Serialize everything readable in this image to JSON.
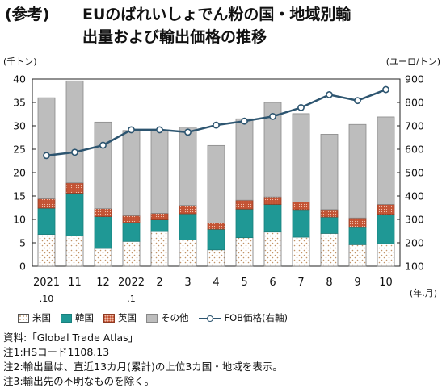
{
  "title": {
    "prefix": "(参考)",
    "line1": "EUのばれいしょでん粉の国・地域別輸",
    "line2": "出量および輸出価格の推移"
  },
  "chart_data": {
    "type": "bar",
    "stacked": true,
    "categories": [
      "2021\n.10",
      "11",
      "12",
      "2022\n.1",
      "2",
      "3",
      "4",
      "5",
      "6",
      "7",
      "8",
      "9",
      "10"
    ],
    "x_unit_label": "(年.月)",
    "y_left_label": "(千トン)",
    "y_right_label": "(ユーロ/トン)",
    "ylim_left": [
      0,
      40
    ],
    "yticks_left": [
      0,
      5,
      10,
      15,
      20,
      25,
      30,
      35,
      40
    ],
    "ylim_right": [
      100,
      900
    ],
    "yticks_right": [
      100,
      200,
      300,
      400,
      500,
      600,
      700,
      800,
      900
    ],
    "series": [
      {
        "name": "米国",
        "values": [
          6.8,
          6.5,
          3.8,
          5.3,
          7.4,
          5.6,
          3.5,
          6.1,
          7.3,
          6.2,
          7.0,
          4.6,
          4.8
        ]
      },
      {
        "name": "韓国",
        "values": [
          5.6,
          9.1,
          6.8,
          4.0,
          2.5,
          5.6,
          4.4,
          6.1,
          5.9,
          5.9,
          3.5,
          3.7,
          6.3
        ]
      },
      {
        "name": "英国",
        "values": [
          2.0,
          2.2,
          1.7,
          1.5,
          1.4,
          1.8,
          1.3,
          1.9,
          1.6,
          1.6,
          1.6,
          2.0,
          2.1
        ]
      },
      {
        "name": "その他",
        "values": [
          21.6,
          21.8,
          18.5,
          18.2,
          17.8,
          16.7,
          16.6,
          17.4,
          20.2,
          18.9,
          16.1,
          20.0,
          18.7
        ]
      }
    ],
    "line_series": {
      "name": "FOB価格(右軸)",
      "values": [
        573,
        587,
        617,
        683,
        683,
        673,
        703,
        720,
        740,
        778,
        833,
        808,
        855
      ]
    },
    "legend_position": "bottom",
    "grid": false
  },
  "colors": {
    "us": "#ffffff",
    "kr": "#1f9895",
    "uk": "#c35334",
    "other": "#bdbdbd",
    "line": "#2d5570"
  },
  "notes": [
    "資料:「Global Trade Atlas」",
    "注1:HSコード1108.13",
    "注2:輸出量は、直近13カ月(累計)の上位3カ国・地域を表示。",
    "注3:輸出先の不明なものを除く。"
  ]
}
